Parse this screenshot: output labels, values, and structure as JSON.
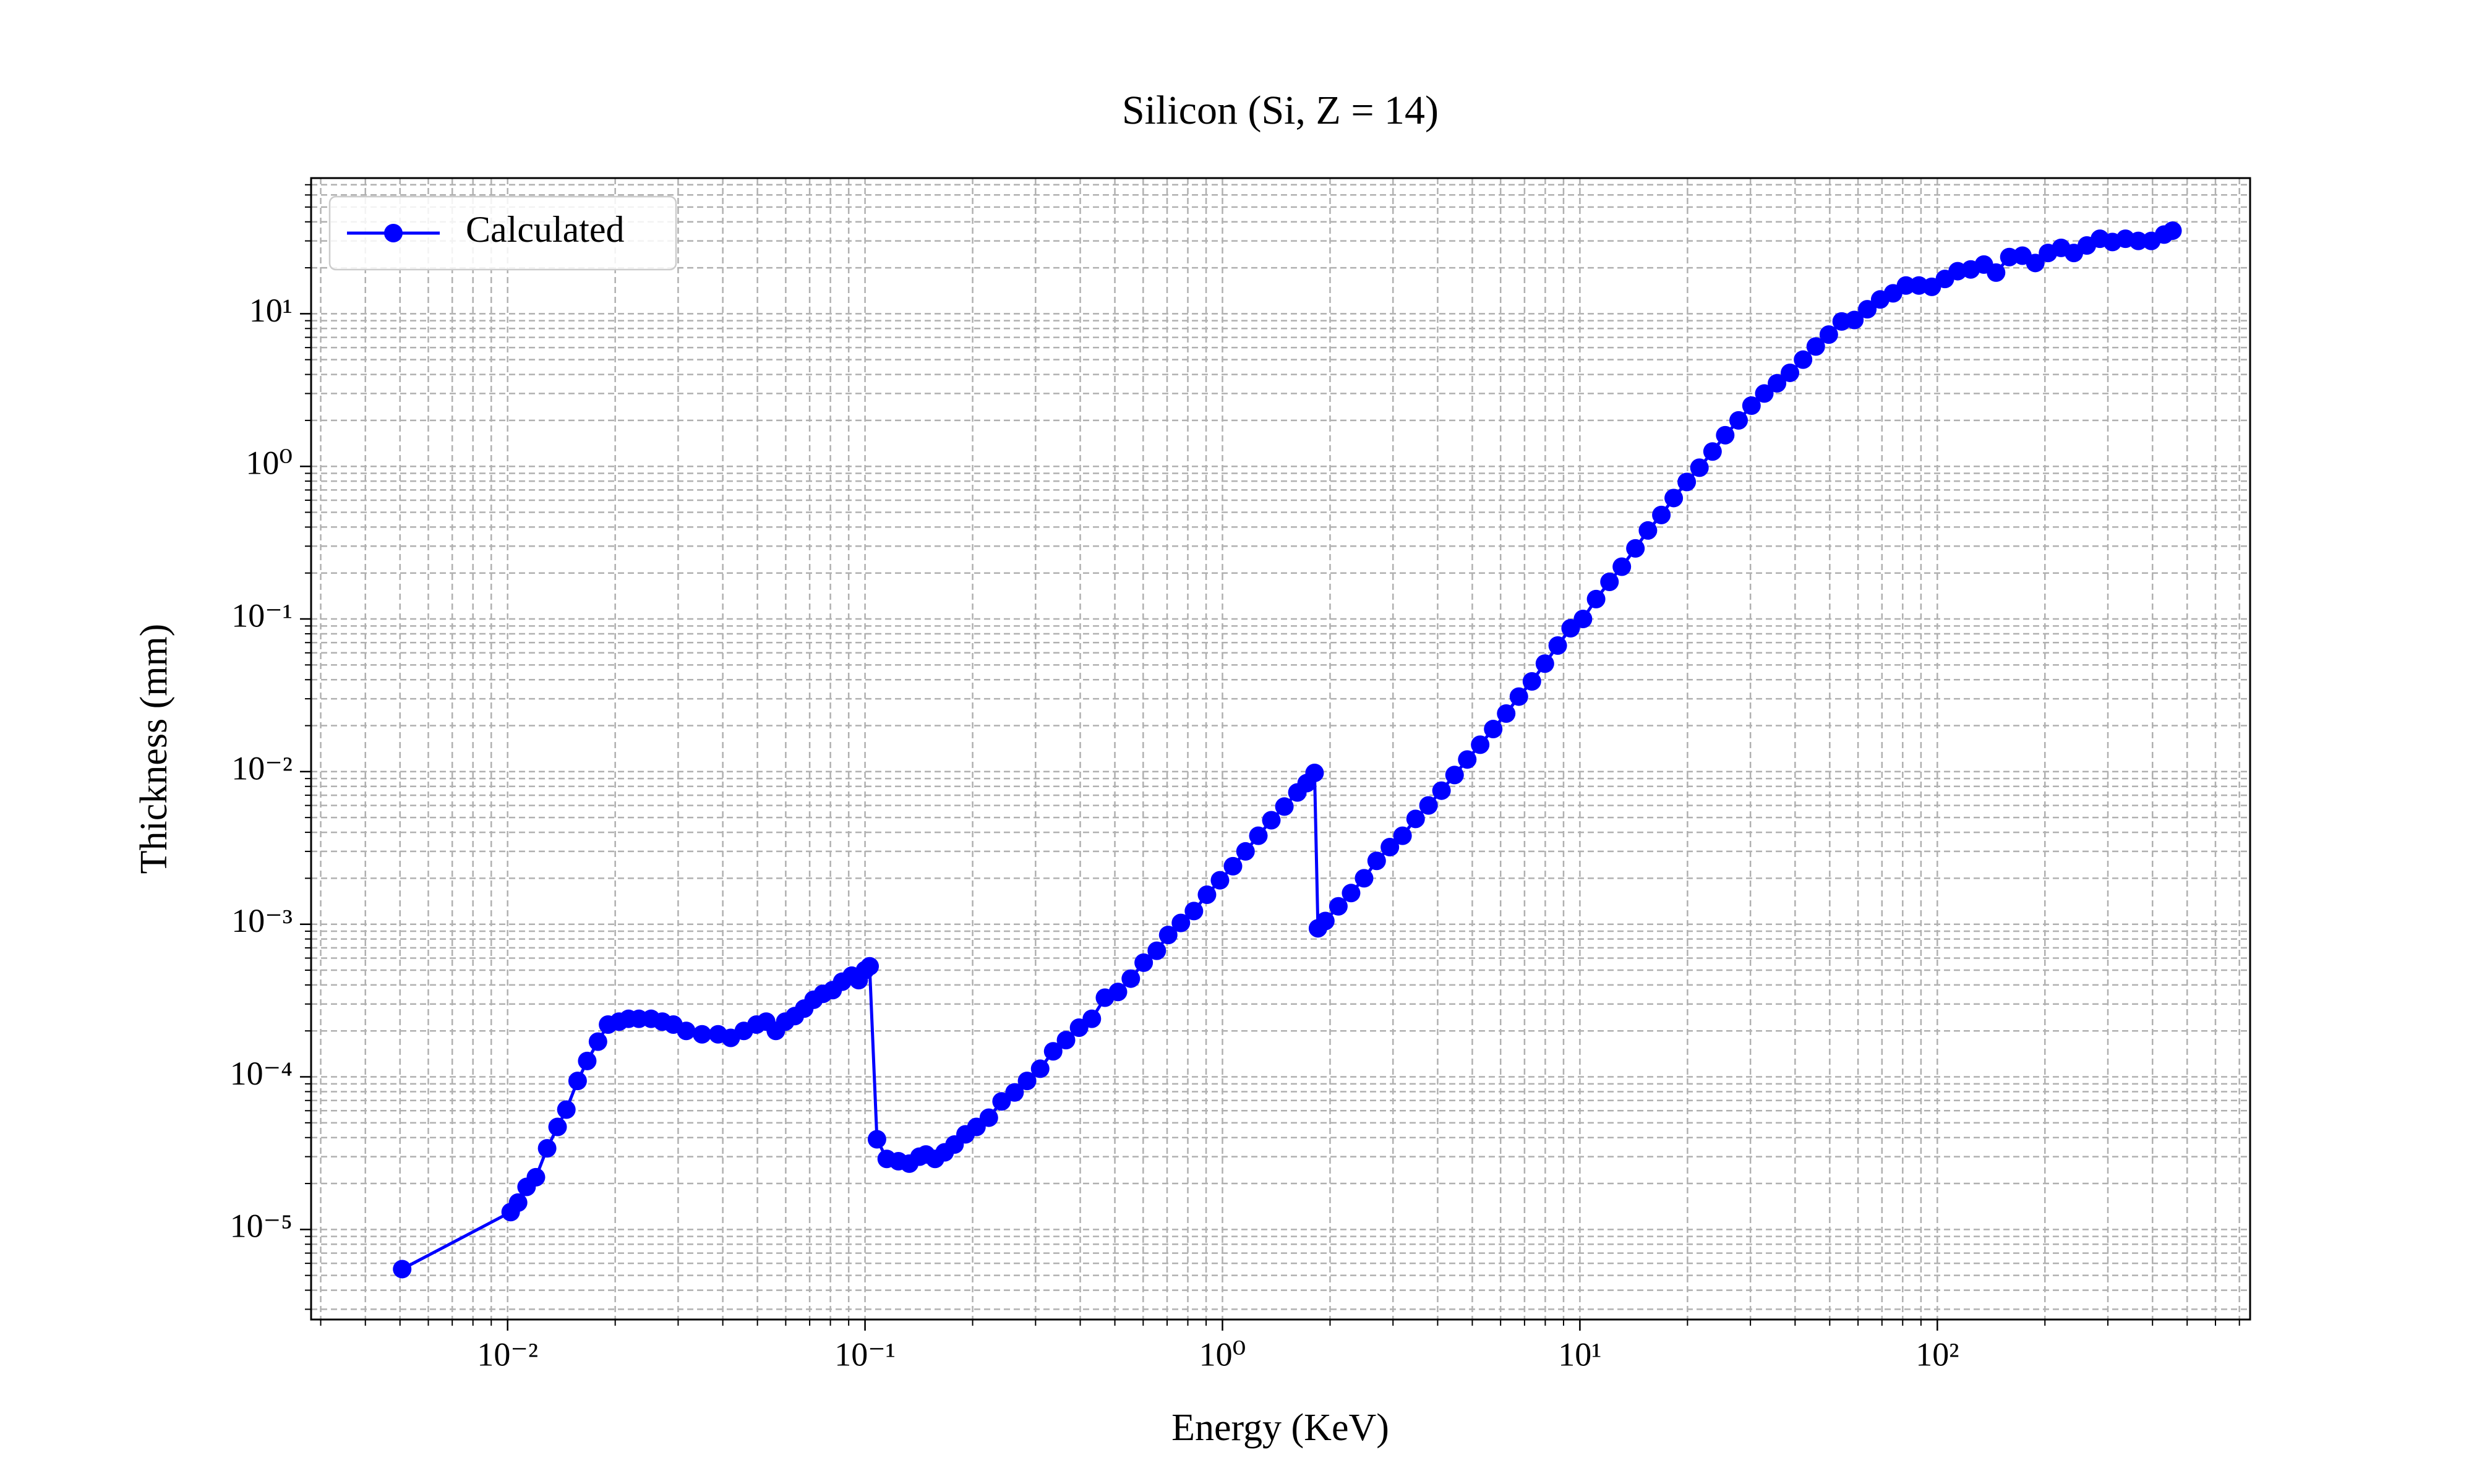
{
  "chart_data": {
    "type": "line",
    "title": "Silicon (Si, Z = 14)",
    "x_label": "Energy (KeV)",
    "y_label": "Thickness (mm)",
    "log_x": true,
    "log_y": true,
    "grid": "both",
    "legend": "upper left",
    "xlim": [
      0.00282,
      750
    ],
    "ylim": [
      2.57e-06,
      77.4
    ],
    "xticks": [
      {
        "value": 0.01,
        "label": "10⁻²"
      },
      {
        "value": 0.1,
        "label": "10⁻¹"
      },
      {
        "value": 1,
        "label": "10⁰"
      },
      {
        "value": 10,
        "label": "10¹"
      },
      {
        "value": 100,
        "label": "10²"
      }
    ],
    "yticks": [
      {
        "value": 1e-05,
        "label": "10⁻⁵"
      },
      {
        "value": 0.0001,
        "label": "10⁻⁴"
      },
      {
        "value": 0.001,
        "label": "10⁻³"
      },
      {
        "value": 0.01,
        "label": "10⁻²"
      },
      {
        "value": 0.1,
        "label": "10⁻¹"
      },
      {
        "value": 1,
        "label": "10⁰"
      },
      {
        "value": 10,
        "label": "10¹"
      }
    ],
    "x": [
      0.00507,
      0.0102,
      0.0107,
      0.0113,
      0.012,
      0.0129,
      0.0138,
      0.0146,
      0.0157,
      0.0167,
      0.0179,
      0.0191,
      0.0205,
      0.0218,
      0.0233,
      0.0252,
      0.0271,
      0.0291,
      0.0316,
      0.035,
      0.0388,
      0.0421,
      0.0458,
      0.0497,
      0.0529,
      0.0563,
      0.0598,
      0.0636,
      0.0676,
      0.0718,
      0.0763,
      0.0812,
      0.0863,
      0.0918,
      0.096,
      0.1,
      0.103,
      0.108,
      0.115,
      0.124,
      0.133,
      0.142,
      0.148,
      0.157,
      0.167,
      0.178,
      0.191,
      0.205,
      0.222,
      0.241,
      0.262,
      0.284,
      0.309,
      0.336,
      0.365,
      0.397,
      0.431,
      0.469,
      0.51,
      0.554,
      0.602,
      0.655,
      0.705,
      0.765,
      0.832,
      0.905,
      0.984,
      1.07,
      1.16,
      1.26,
      1.37,
      1.49,
      1.62,
      1.72,
      1.81,
      1.85,
      1.94,
      2.11,
      2.29,
      2.49,
      2.7,
      2.94,
      3.19,
      3.47,
      3.77,
      4.1,
      4.46,
      4.84,
      5.26,
      5.72,
      6.22,
      6.75,
      7.34,
      7.98,
      8.67,
      9.42,
      10.2,
      11.1,
      12.1,
      13.1,
      14.3,
      15.5,
      16.9,
      18.3,
      19.9,
      21.6,
      23.5,
      25.5,
      27.8,
      30.2,
      32.8,
      35.6,
      38.7,
      42.1,
      45.7,
      49.7,
      54,
      58.6,
      63.7,
      69.2,
      75.2,
      81.7,
      88.8,
      96.5,
      105,
      114,
      124,
      135,
      146,
      159,
      173,
      188,
      204,
      222,
      241,
      262,
      285,
      309,
      336,
      365,
      397,
      431,
      455
    ],
    "series": [
      {
        "name": "Calculated",
        "color": "#0000ff",
        "values": [
          5.5e-06,
          1.3e-05,
          1.5e-05,
          1.9e-05,
          2.2e-05,
          3.4e-05,
          4.7e-05,
          6.1e-05,
          9.4e-05,
          0.000127,
          0.00017,
          0.00022,
          0.00023,
          0.00024,
          0.00024,
          0.00024,
          0.00023,
          0.00022,
          0.0002,
          0.00019,
          0.00019,
          0.00018,
          0.0002,
          0.00022,
          0.00023,
          0.0002,
          0.00023,
          0.00025,
          0.00028,
          0.00032,
          0.00035,
          0.00037,
          0.00042,
          0.00046,
          0.00043,
          0.0005,
          0.00053,
          3.9e-05,
          2.9e-05,
          2.8e-05,
          2.7e-05,
          3e-05,
          3.1e-05,
          2.9e-05,
          3.2e-05,
          3.6e-05,
          4.2e-05,
          4.7e-05,
          5.4e-05,
          6.9e-05,
          7.9e-05,
          9.4e-05,
          0.000113,
          0.000147,
          0.000174,
          0.00021,
          0.00024,
          0.00033,
          0.00036,
          0.00044,
          0.00056,
          0.00067,
          0.00085,
          0.00102,
          0.00122,
          0.00156,
          0.00194,
          0.0024,
          0.003,
          0.0038,
          0.0048,
          0.0059,
          0.0073,
          0.0084,
          0.0098,
          0.00094,
          0.00105,
          0.00131,
          0.0016,
          0.002,
          0.0026,
          0.0032,
          0.0038,
          0.0049,
          0.006,
          0.0075,
          0.0095,
          0.012,
          0.015,
          0.019,
          0.024,
          0.031,
          0.039,
          0.051,
          0.067,
          0.087,
          0.1,
          0.135,
          0.175,
          0.22,
          0.29,
          0.38,
          0.48,
          0.62,
          0.79,
          0.98,
          1.25,
          1.6,
          2,
          2.5,
          3,
          3.5,
          4.1,
          5,
          6.1,
          7.3,
          8.9,
          9.1,
          10.7,
          12.4,
          13.6,
          15.3,
          15.3,
          15,
          16.9,
          19,
          19.5,
          21,
          18.6,
          23.5,
          24,
          21.5,
          25,
          27,
          25,
          28,
          31,
          29.5,
          31,
          30,
          30,
          33,
          35
        ]
      }
    ]
  }
}
